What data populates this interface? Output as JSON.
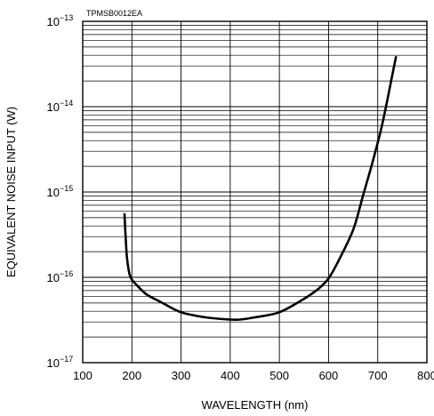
{
  "figure_code": "TPMSB0012EA",
  "chart_data": {
    "type": "line",
    "xlabel": "WAVELENGTH (nm)",
    "ylabel": "EQUIVALENT  NOISE  INPUT (W)",
    "xlim": [
      100,
      800
    ],
    "x_ticks": [
      "100",
      "200",
      "300",
      "400",
      "500",
      "600",
      "700",
      "800"
    ],
    "ylim": [
      1e-17,
      1e-13
    ],
    "y_scale": "log",
    "y_ticks": [
      {
        "base": "10",
        "exp": "−17",
        "value": 1e-17
      },
      {
        "base": "10",
        "exp": "−16",
        "value": 1e-16
      },
      {
        "base": "10",
        "exp": "−15",
        "value": 1e-15
      },
      {
        "base": "10",
        "exp": "−14",
        "value": 1e-14
      },
      {
        "base": "10",
        "exp": "−13",
        "value": 1e-13
      }
    ],
    "grid": true,
    "series": [
      {
        "color": "#000000",
        "x": [
          185,
          187,
          190,
          195,
          200,
          210,
          230,
          260,
          300,
          350,
          400,
          420,
          450,
          500,
          550,
          580,
          600,
          620,
          650,
          670,
          690,
          710,
          730,
          737
        ],
        "y": [
          5.5e-16,
          3.2e-16,
          1.7e-16,
          1.1e-16,
          9.4e-17,
          8.1e-17,
          6.3e-17,
          5.1e-17,
          3.9e-17,
          3.4e-17,
          3.2e-17,
          3.2e-17,
          3.4e-17,
          3.9e-17,
          5.6e-17,
          7.4e-17,
          9.7e-17,
          1.55e-16,
          3.6e-16,
          9e-16,
          2.3e-15,
          6.5e-15,
          2.4e-14,
          3.8e-14
        ]
      }
    ]
  }
}
